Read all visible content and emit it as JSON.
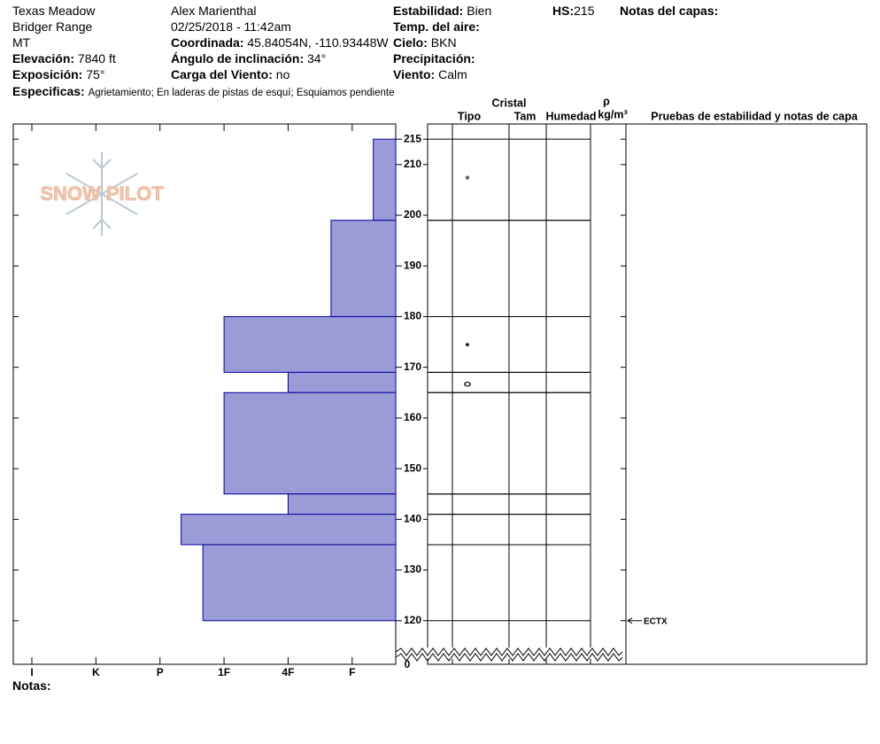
{
  "header": {
    "location": "Texas Meadow",
    "range": "Bridger Range",
    "state": "MT",
    "elevation": {
      "label": "Elevación:",
      "value": "7840 ft"
    },
    "aspect": {
      "label": "Exposición:",
      "value": "75°"
    },
    "observer": "Alex Marienthal",
    "datetime": "02/25/2018 - 11:42am",
    "coordinates": {
      "label": "Coordinada:",
      "value": "45.84054N, -110.93448W"
    },
    "slope_angle": {
      "label": "Ángulo de inclinación:",
      "value": "34°"
    },
    "wind_loading": {
      "label": "Carga del Viento:",
      "value": "no"
    },
    "stability": {
      "label": "Estabilidad:",
      "value": "Bien"
    },
    "air_temp": {
      "label": "Temp. del aire:"
    },
    "sky": {
      "label": "Cielo:",
      "value": "BKN"
    },
    "precipitation": {
      "label": "Precipitación:"
    },
    "wind": {
      "label": "Viento:",
      "value": "Calm"
    },
    "hs": {
      "label": "HS:",
      "value": 215
    },
    "layer_notes": {
      "label": "Notas del capas:"
    },
    "specifics": {
      "label": "Especificas:",
      "value": "Agrietamiento; En laderas de pistas de esquí; Esquiamos pendiente"
    },
    "logo": "SNOW PILOT"
  },
  "columns": {
    "crystal": "Cristal",
    "type": "Tipo",
    "size": "Tam",
    "moisture": "Humedad",
    "density_symbol": "ρ",
    "density_unit": "kg/m³",
    "tests": "Pruebas de estabilidad y notas de capa"
  },
  "notes": {
    "label": "Notas:"
  },
  "chart_data": {
    "type": "snow-profile",
    "color": "#9b9bd8",
    "xlim": [
      6.29,
      0.32
    ],
    "xticks": [
      {
        "value": 6,
        "label": "I"
      },
      {
        "value": 5,
        "label": "K"
      },
      {
        "value": 4,
        "label": "P"
      },
      {
        "value": 3,
        "label": "1F"
      },
      {
        "value": 2,
        "label": "4F"
      },
      {
        "value": 1,
        "label": "F"
      }
    ],
    "ylim": [
      111.4,
      218
    ],
    "yticks": [
      120,
      130,
      140,
      150,
      160,
      170,
      180,
      190,
      200,
      210,
      215
    ],
    "ground": 0,
    "layers": [
      {
        "top": 215,
        "bottom": 199,
        "hardness": 0.67,
        "grain": "*"
      },
      {
        "top": 199,
        "bottom": 180,
        "hardness": 1.33
      },
      {
        "top": 180,
        "bottom": 169,
        "hardness": 3,
        "grain": "•"
      },
      {
        "top": 169,
        "bottom": 165,
        "hardness": 2,
        "grain": "ⴰ"
      },
      {
        "top": 165,
        "bottom": 145,
        "hardness": 3
      },
      {
        "top": 145,
        "bottom": 141,
        "hardness": 2
      },
      {
        "top": 141,
        "bottom": 135,
        "hardness": 3.67
      },
      {
        "top": 135,
        "bottom": 120,
        "hardness": 3.33
      }
    ],
    "tests": [
      {
        "height": 120,
        "label": "ECTX"
      }
    ]
  }
}
